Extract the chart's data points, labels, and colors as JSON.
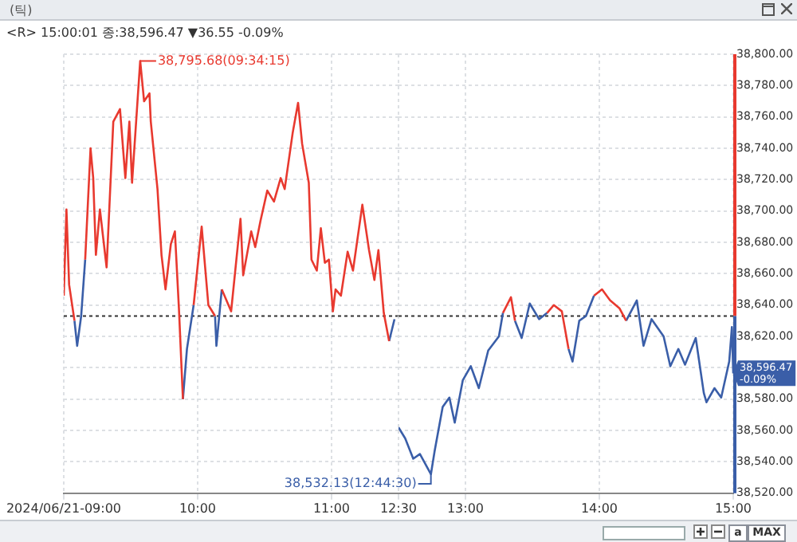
{
  "chart_data": [
    {
      "type": "line",
      "title": "<R> 15:00:01 종:38,596.47 ▼36.55 -0.09%",
      "subtitle": "(틱)",
      "x": [
        9,
        9.02,
        9.04,
        9.08,
        9.1,
        9.13,
        9.16,
        9.2,
        9.22,
        9.24,
        9.27,
        9.32,
        9.37,
        9.42,
        9.46,
        9.49,
        9.51,
        9.5708,
        9.6,
        9.64,
        9.65,
        9.7,
        9.73,
        9.76,
        9.8,
        9.83,
        9.86,
        9.89,
        9.92,
        9.97,
        10.03,
        10.08,
        10.13,
        10.14,
        10.18,
        10.25,
        10.32,
        10.34,
        10.4,
        10.43,
        10.47,
        10.52,
        10.57,
        10.62,
        10.65,
        10.71,
        10.75,
        10.78,
        10.83,
        10.85,
        10.89,
        10.92,
        10.95,
        10.98,
        11.01,
        11.03,
        11.07,
        11.12,
        11.16,
        11.23,
        11.28,
        11.32,
        11.35,
        11.39,
        11.43,
        11.47
      ],
      "series": [
        {
          "color": "#e8392f",
          "values": [
            38646,
            38701,
            38653,
            38630,
            null,
            null,
            38669,
            38740,
            38721,
            38672,
            38701,
            38664,
            38757,
            38765,
            38721,
            38757,
            38718,
            38795.68,
            38770,
            38775,
            38757,
            38714,
            38672,
            38650,
            38679,
            38687,
            38638,
            38580,
            null,
            38640,
            38690,
            38640,
            38633,
            null,
            38650,
            38636,
            38695,
            38659,
            38687,
            38677,
            38694,
            38713,
            38706,
            38721,
            38714,
            38750,
            38769,
            38743,
            38718,
            38669,
            38662,
            38689,
            38667,
            38669,
            38636,
            38650,
            38646,
            38674,
            38662,
            38704,
            38675,
            38656,
            38675,
            38635,
            38617,
            null
          ]
        },
        {
          "color": "#3a5ea8",
          "values": [
            null,
            null,
            null,
            38630,
            38614,
            38633,
            38669,
            null,
            null,
            null,
            null,
            null,
            null,
            null,
            null,
            null,
            null,
            null,
            null,
            null,
            null,
            null,
            null,
            null,
            null,
            null,
            null,
            38580,
            38612,
            38640,
            null,
            null,
            38633,
            38614,
            38650,
            null,
            null,
            null,
            null,
            null,
            null,
            null,
            null,
            null,
            null,
            null,
            null,
            null,
            null,
            null,
            null,
            null,
            null,
            null,
            null,
            null,
            null,
            null,
            null,
            null,
            null,
            null,
            null,
            null,
            38617,
            38631
          ]
        }
      ],
      "xlim": [
        9,
        11.5
      ],
      "xticks": [
        {
          "value": 9,
          "label": "2024/06/21-09:00"
        },
        {
          "value": 10,
          "label": "10:00"
        },
        {
          "value": 11,
          "label": "11:00"
        }
      ],
      "ylim": [
        38520,
        38800
      ],
      "yticks": [
        38520,
        38540,
        38560,
        38580,
        38600,
        38620,
        38640,
        38660,
        38680,
        38700,
        38720,
        38740,
        38760,
        38780,
        38800
      ],
      "tick_labels": "x",
      "ref_lines": [
        {
          "axis": "y",
          "value": 38633.02,
          "color": "#333333",
          "line_style": "dotted"
        }
      ],
      "annotations": [
        {
          "text": "38,795.68(09:34:15)",
          "x": 9.5708,
          "y": 38795.68
        }
      ],
      "grid": true,
      "legend": false,
      "marker": "none",
      "line_style": "solid"
    },
    {
      "type": "line",
      "x": [
        12.5,
        12.55,
        12.61,
        12.66,
        12.742,
        12.77,
        12.83,
        12.88,
        12.92,
        12.98,
        13.04,
        13.1,
        13.17,
        13.25,
        13.28,
        13.34,
        13.37,
        13.42,
        13.48,
        13.55,
        13.61,
        13.66,
        13.72,
        13.77,
        13.8,
        13.85,
        13.9,
        13.96,
        14.02,
        14.08,
        14.15,
        14.2,
        14.28,
        14.33,
        14.39,
        14.48,
        14.53,
        14.59,
        14.64,
        14.72,
        14.78,
        14.8,
        14.86,
        14.91,
        14.97,
        14.99,
        15
      ],
      "series": [
        {
          "color": "#e8392f",
          "values": [
            null,
            null,
            null,
            null,
            null,
            null,
            null,
            null,
            null,
            null,
            null,
            null,
            null,
            null,
            38635,
            38645,
            38630,
            null,
            null,
            null,
            38635,
            38640,
            38636,
            38612,
            null,
            null,
            null,
            38646,
            38650,
            38643,
            38638,
            38630,
            null,
            null,
            null,
            null,
            null,
            null,
            null,
            null,
            null,
            null,
            null,
            null,
            null,
            null,
            null
          ]
        },
        {
          "color": "#3a5ea8",
          "values": [
            38562,
            38555,
            38542,
            38545,
            38532.13,
            38547,
            38575,
            38581,
            38565,
            38592,
            38601,
            38587,
            38611,
            38620,
            38635,
            null,
            38630,
            38619,
            38641,
            38631,
            38635,
            null,
            null,
            38612,
            38604,
            38630,
            38633,
            38646,
            null,
            null,
            null,
            38630,
            38643,
            38614,
            38631,
            38620,
            38601,
            38612,
            38602,
            38619,
            38584,
            38578,
            38587,
            38581,
            38604,
            38626,
            38596.47
          ]
        }
      ],
      "xlim": [
        12.5,
        15
      ],
      "xticks": [
        {
          "value": 12.5,
          "label": "12:30"
        },
        {
          "value": 13,
          "label": "13:00"
        },
        {
          "value": 14,
          "label": "14:00"
        },
        {
          "value": 15,
          "label": "15:00"
        }
      ],
      "ylim": [
        38520,
        38800
      ],
      "yticks": [
        {
          "value": 38520,
          "label": "38,520.00"
        },
        {
          "value": 38540,
          "label": "38,540.00"
        },
        {
          "value": 38560,
          "label": "38,560.00"
        },
        {
          "value": 38580,
          "label": "38,580.00"
        },
        {
          "value": 38600,
          "label": null
        },
        {
          "value": 38620,
          "label": "38,620.00"
        },
        {
          "value": 38640,
          "label": "38,640.00"
        },
        {
          "value": 38660,
          "label": "38,660.00"
        },
        {
          "value": 38680,
          "label": "38,680.00"
        },
        {
          "value": 38700,
          "label": "38,700.00"
        },
        {
          "value": 38720,
          "label": "38,720.00"
        },
        {
          "value": 38740,
          "label": "38,740.00"
        },
        {
          "value": 38760,
          "label": "38,760.00"
        },
        {
          "value": 38780,
          "label": "38,780.00"
        },
        {
          "value": 38800,
          "label": "38,800.00"
        }
      ],
      "ref_lines": [
        {
          "axis": "y",
          "value": 38633.02,
          "color": "#333333",
          "line_style": "dotted"
        }
      ],
      "annotations": [
        {
          "text": "38,532.13(12:44:30)",
          "x": 12.742,
          "y": 38532.13
        },
        {
          "text": "38,596.47\n-0.09%",
          "x": 15,
          "y": 38596.47
        },
        "a",
        "MAX"
      ],
      "grid": true,
      "legend": false,
      "marker": "none",
      "line_style": "solid"
    }
  ]
}
